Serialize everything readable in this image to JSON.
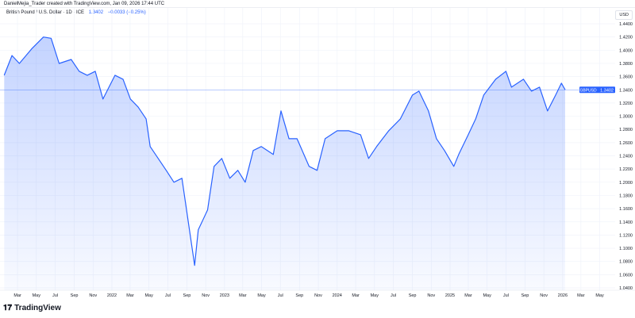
{
  "header": {
    "credit": "DanielMejia_Trader created with TradingView.com, Jan 09, 2026 17:44 UTC",
    "symbol_title": "British Pound / U.S. Dollar · 1D · ICE",
    "last": "1.3402",
    "change": "−0.0033 (−0.25%)"
  },
  "currency_label": "USD",
  "price_tag": {
    "symbol": "GBPUSD",
    "value": "1.3402"
  },
  "brand": "TradingView",
  "colors": {
    "line": "#2962ff",
    "fill_top": "rgba(41,98,255,0.28)",
    "fill_bottom": "rgba(41,98,255,0.03)",
    "grid": "#f0f3fa",
    "tag": "#2962ff"
  },
  "chart_data": {
    "type": "area",
    "ylim": [
      1.03,
      1.45
    ],
    "grid": true,
    "y_ticks": [
      "1.4400",
      "1.4200",
      "1.4000",
      "1.3800",
      "1.3600",
      "1.3400",
      "1.3200",
      "1.3000",
      "1.2800",
      "1.2600",
      "1.2400",
      "1.2200",
      "1.2000",
      "1.1800",
      "1.1600",
      "1.1400",
      "1.1200",
      "1.1000",
      "1.0800",
      "1.0600",
      "1.0400"
    ],
    "x_ticks": [
      {
        "date": "2021-03-01",
        "label": "Mar"
      },
      {
        "date": "2021-05-01",
        "label": "May"
      },
      {
        "date": "2021-07-01",
        "label": "Jul"
      },
      {
        "date": "2021-09-01",
        "label": "Sep"
      },
      {
        "date": "2021-11-01",
        "label": "Nov"
      },
      {
        "date": "2022-01-01",
        "label": "2022"
      },
      {
        "date": "2022-03-01",
        "label": "Mar"
      },
      {
        "date": "2022-05-01",
        "label": "May"
      },
      {
        "date": "2022-07-01",
        "label": "Jul"
      },
      {
        "date": "2022-09-01",
        "label": "Sep"
      },
      {
        "date": "2022-11-01",
        "label": "Nov"
      },
      {
        "date": "2023-01-01",
        "label": "2023"
      },
      {
        "date": "2023-03-01",
        "label": "Mar"
      },
      {
        "date": "2023-05-01",
        "label": "May"
      },
      {
        "date": "2023-07-01",
        "label": "Jul"
      },
      {
        "date": "2023-09-01",
        "label": "Sep"
      },
      {
        "date": "2023-11-01",
        "label": "Nov"
      },
      {
        "date": "2024-01-01",
        "label": "2024"
      },
      {
        "date": "2024-03-01",
        "label": "Mar"
      },
      {
        "date": "2024-05-01",
        "label": "May"
      },
      {
        "date": "2024-07-01",
        "label": "Jul"
      },
      {
        "date": "2024-09-01",
        "label": "Sep"
      },
      {
        "date": "2024-11-01",
        "label": "Nov"
      },
      {
        "date": "2025-01-01",
        "label": "2025"
      },
      {
        "date": "2025-03-01",
        "label": "Mar"
      },
      {
        "date": "2025-05-01",
        "label": "May"
      },
      {
        "date": "2025-07-01",
        "label": "Jul"
      },
      {
        "date": "2025-09-01",
        "label": "Sep"
      },
      {
        "date": "2025-11-01",
        "label": "Nov"
      },
      {
        "date": "2026-01-01",
        "label": "2026"
      },
      {
        "date": "2026-03-01",
        "label": "Mar"
      },
      {
        "date": "2026-05-01",
        "label": "May"
      }
    ],
    "series": [
      {
        "points": [
          [
            "2021-01-17",
            1.362
          ],
          [
            "2021-02-11",
            1.392
          ],
          [
            "2021-03-07",
            1.38
          ],
          [
            "2021-04-16",
            1.402
          ],
          [
            "2021-05-24",
            1.42
          ],
          [
            "2021-06-18",
            1.418
          ],
          [
            "2021-07-14",
            1.38
          ],
          [
            "2021-08-22",
            1.386
          ],
          [
            "2021-09-17",
            1.368
          ],
          [
            "2021-10-13",
            1.362
          ],
          [
            "2021-11-08",
            1.368
          ],
          [
            "2021-12-03",
            1.326
          ],
          [
            "2022-01-11",
            1.362
          ],
          [
            "2022-02-06",
            1.356
          ],
          [
            "2022-03-02",
            1.326
          ],
          [
            "2022-03-27",
            1.314
          ],
          [
            "2022-04-22",
            1.296
          ],
          [
            "2022-05-05",
            1.254
          ],
          [
            "2022-05-31",
            1.236
          ],
          [
            "2022-06-26",
            1.218
          ],
          [
            "2022-07-21",
            1.2
          ],
          [
            "2022-08-16",
            1.206
          ],
          [
            "2022-09-26",
            1.074
          ],
          [
            "2022-10-08",
            1.128
          ],
          [
            "2022-10-20",
            1.14
          ],
          [
            "2022-11-07",
            1.158
          ],
          [
            "2022-11-28",
            1.224
          ],
          [
            "2022-12-23",
            1.236
          ],
          [
            "2023-01-18",
            1.206
          ],
          [
            "2023-02-13",
            1.218
          ],
          [
            "2023-03-09",
            1.2
          ],
          [
            "2023-04-04",
            1.248
          ],
          [
            "2023-04-30",
            1.254
          ],
          [
            "2023-06-08",
            1.242
          ],
          [
            "2023-07-03",
            1.308
          ],
          [
            "2023-07-29",
            1.266
          ],
          [
            "2023-08-24",
            1.266
          ],
          [
            "2023-10-02",
            1.224
          ],
          [
            "2023-10-28",
            1.218
          ],
          [
            "2023-11-23",
            1.266
          ],
          [
            "2024-01-01",
            1.278
          ],
          [
            "2024-02-08",
            1.278
          ],
          [
            "2024-03-17",
            1.272
          ],
          [
            "2024-04-12",
            1.236
          ],
          [
            "2024-05-08",
            1.254
          ],
          [
            "2024-06-16",
            1.278
          ],
          [
            "2024-07-24",
            1.296
          ],
          [
            "2024-09-01",
            1.332
          ],
          [
            "2024-09-22",
            1.338
          ],
          [
            "2024-10-23",
            1.308
          ],
          [
            "2024-11-18",
            1.266
          ],
          [
            "2024-12-14",
            1.248
          ],
          [
            "2025-01-13",
            1.224
          ],
          [
            "2025-01-29",
            1.242
          ],
          [
            "2025-03-01",
            1.272
          ],
          [
            "2025-03-25",
            1.296
          ],
          [
            "2025-04-20",
            1.332
          ],
          [
            "2025-05-29",
            1.356
          ],
          [
            "2025-07-01",
            1.368
          ],
          [
            "2025-07-19",
            1.344
          ],
          [
            "2025-08-27",
            1.356
          ],
          [
            "2025-09-22",
            1.338
          ],
          [
            "2025-10-18",
            1.344
          ],
          [
            "2025-11-13",
            1.308
          ],
          [
            "2025-12-09",
            1.332
          ],
          [
            "2025-12-28",
            1.35
          ],
          [
            "2026-01-09",
            1.34
          ]
        ]
      }
    ]
  }
}
